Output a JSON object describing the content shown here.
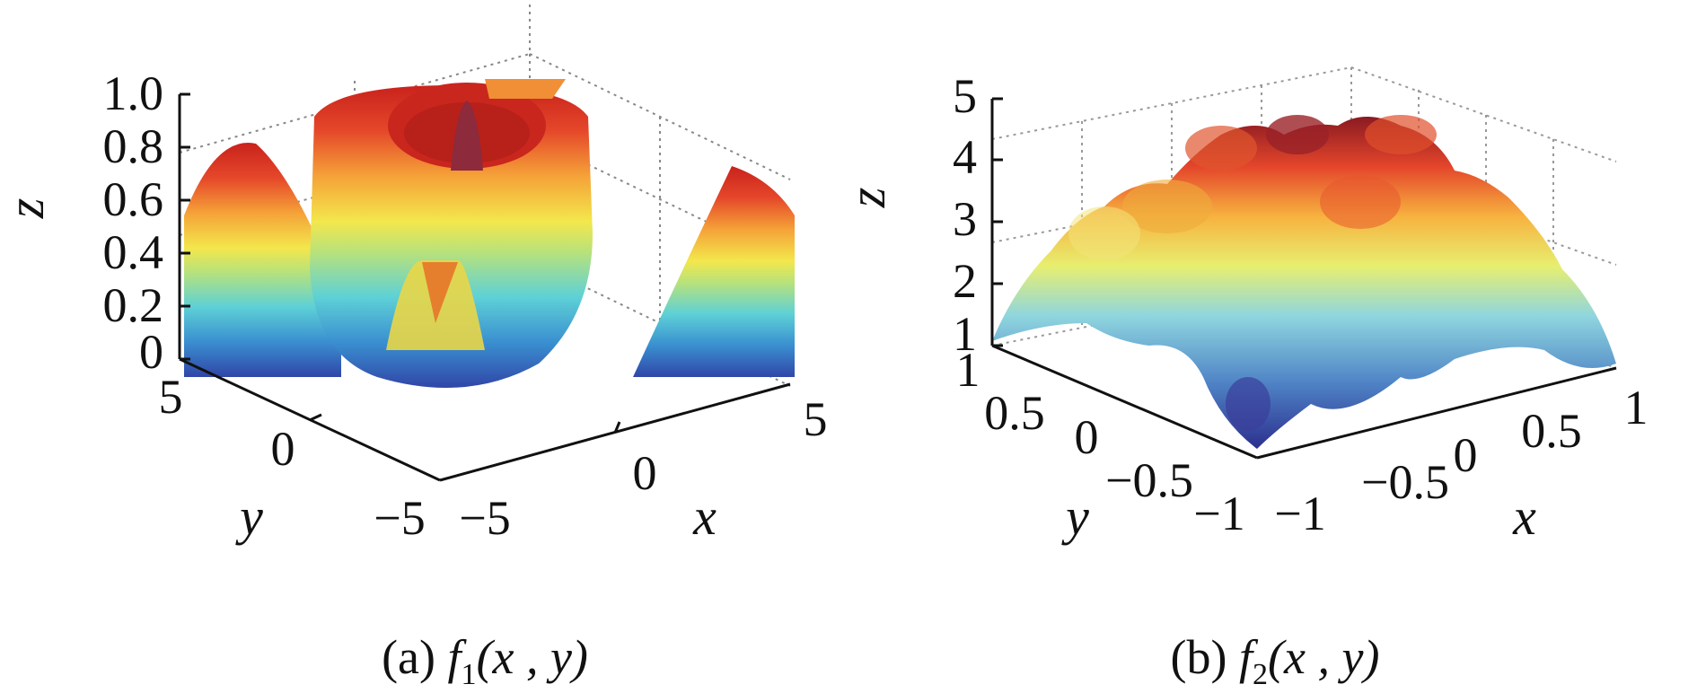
{
  "chart_data": [
    {
      "type": "surface",
      "caption": {
        "prefix": "(a) ",
        "func": "f",
        "sub": "1",
        "args": "(x , y)"
      },
      "xlabel": "x",
      "ylabel": "y",
      "zlabel": "z",
      "xlim": [
        -5,
        5
      ],
      "ylim": [
        -5,
        5
      ],
      "zlim": [
        0,
        1.0
      ],
      "xticks": [
        "−5",
        "0",
        "5"
      ],
      "yticks": [
        "−5",
        "0",
        "5"
      ],
      "zticks": [
        "0",
        "0.2",
        "0.4",
        "0.6",
        "0.8",
        "1.0"
      ],
      "grid": true,
      "colormap": "jet",
      "surface": "radially symmetric ring: high ring near radius 2.5, central peak, rising toward corners"
    },
    {
      "type": "surface",
      "caption": {
        "prefix": "(b) ",
        "func": "f",
        "sub": "2",
        "args": "(x , y)"
      },
      "xlabel": "x",
      "ylabel": "y",
      "zlabel": "z",
      "xlim": [
        -1,
        1
      ],
      "ylim": [
        -1,
        1
      ],
      "zlim": [
        1,
        5
      ],
      "xticks": [
        "−1",
        "−0.5",
        "0",
        "0.5",
        "1"
      ],
      "yticks": [
        "−1",
        "−0.5",
        "0",
        "0.5",
        "1"
      ],
      "zticks": [
        "1",
        "2",
        "3",
        "4",
        "5"
      ],
      "grid": true,
      "colormap": "jet",
      "surface": "multimodal: several rounded peaks up to about 4.6 near the centre, falling toward edges"
    }
  ],
  "colors": {
    "low": "#2b3a9c",
    "mid": "#f0e84a",
    "high": "#d42a20"
  }
}
